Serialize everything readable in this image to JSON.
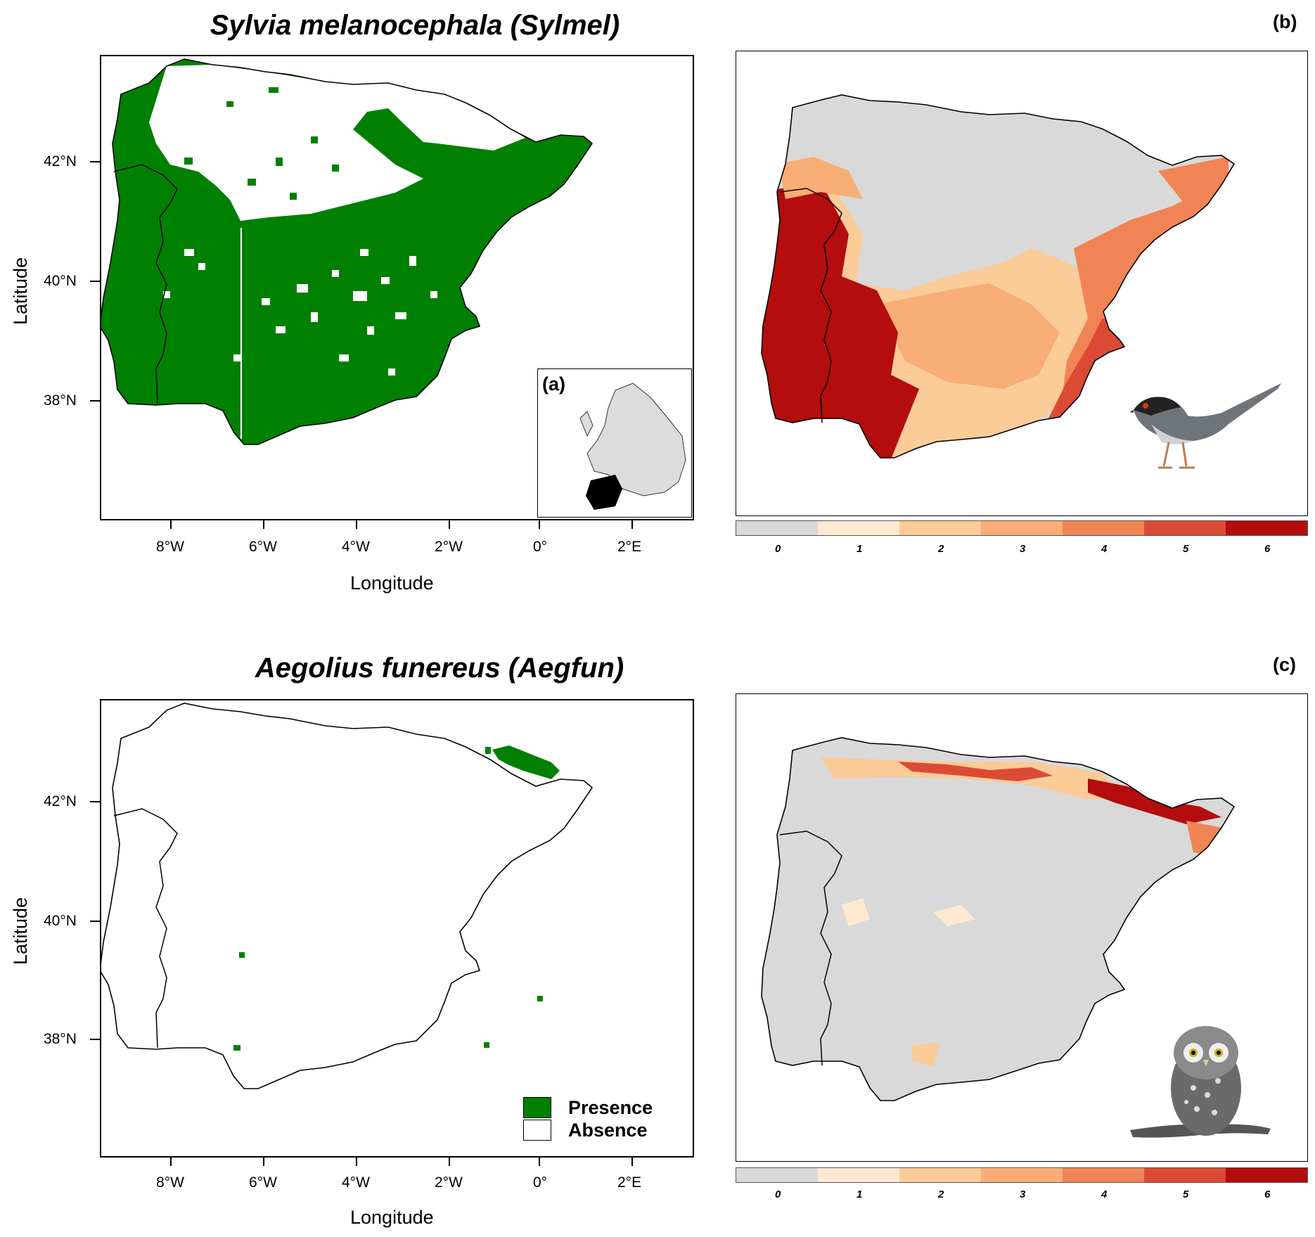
{
  "panel_top": {
    "title": "Sylvia melanocephala (Sylmel)",
    "map_tag": "(b)",
    "inset_tag": "(a)",
    "ylabel": "Latitude",
    "xlabel": "Longitude"
  },
  "panel_bottom": {
    "title": "Aegolius funereus (Aegfun)",
    "map_tag": "(c)",
    "ylabel": "Latitude",
    "xlabel": "Longitude",
    "legend": {
      "presence": "Presence",
      "absence": "Absence"
    }
  },
  "y_ticks": [
    "42°N",
    "40°N",
    "38°N"
  ],
  "x_ticks": [
    "8°W",
    "6°W",
    "4°W",
    "2°W",
    "0°",
    "2°E"
  ],
  "colorbar": {
    "labels": [
      "0",
      "1",
      "2",
      "3",
      "4",
      "5",
      "6"
    ],
    "colors": [
      "#d9d9d9",
      "#fde9d2",
      "#fbcb98",
      "#f8ad76",
      "#f18454",
      "#dc4a35",
      "#b30d0d"
    ]
  },
  "colors": {
    "presence": "#008000",
    "absence": "#ffffff",
    "sea": "#ffffff",
    "land_grey": "#d9d9d9"
  },
  "icons": {
    "bird": "sardinian-warbler-illustration",
    "owl": "boreal-owl-illustration"
  }
}
